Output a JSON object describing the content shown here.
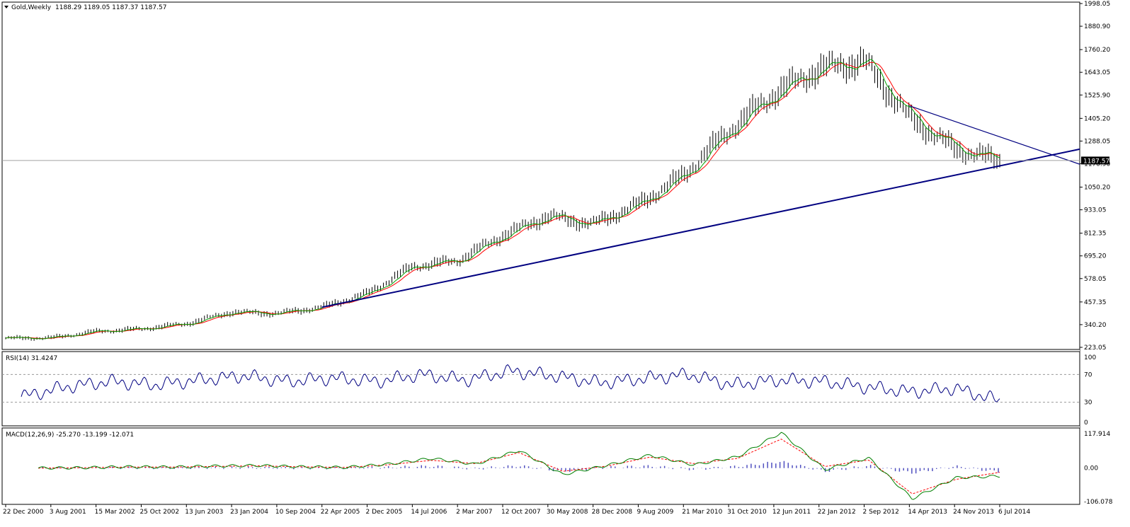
{
  "header": {
    "title": "Gold,Weekly",
    "ohlc": "1188.29 1189.05 1187.37 1187.57"
  },
  "main_panel": {
    "price_ticks": [
      "1998.05",
      "1880.90",
      "1760.20",
      "1643.05",
      "1525.90",
      "1405.20",
      "1288.05",
      "1170.90",
      "1050.20",
      "933.05",
      "812.35",
      "695.20",
      "578.05",
      "457.35",
      "340.20",
      "223.05"
    ],
    "current_price_label": "1187.57"
  },
  "rsi_panel": {
    "title": "RSI(14) 31.4247",
    "ticks": [
      "100",
      "70",
      "30",
      "0"
    ]
  },
  "macd_panel": {
    "title": "MACD(12,26,9) -25.270 -13.199 -12.071",
    "ticks": [
      "117.914",
      "0.00",
      "-106.078"
    ]
  },
  "time_axis": {
    "labels": [
      "22 Dec 2000",
      "3 Aug 2001",
      "15 Mar 2002",
      "25 Oct 2002",
      "13 Jun 2003",
      "23 Jan 2004",
      "10 Sep 2004",
      "22 Apr 2005",
      "2 Dec 2005",
      "14 Jul 2006",
      "2 Mar 2007",
      "12 Oct 2007",
      "30 May 2008",
      "28 Dec 2008",
      "9 Aug 2009",
      "21 Mar 2010",
      "31 Oct 2010",
      "12 Jun 2011",
      "22 Jan 2012",
      "2 Sep 2012",
      "14 Apr 2013",
      "24 Nov 2013",
      "6 Jul 2014"
    ]
  },
  "colors": {
    "price_bar": "#000000",
    "ma_fast": "#00a000",
    "ma_slow": "#ff0000",
    "trendline": "#000080",
    "rsi_line": "#000080",
    "macd_line": "#008000",
    "macd_signal": "#ff0000",
    "macd_histogram": "#5050c0"
  },
  "chart_data": {
    "type": "line",
    "price_anchors": {
      "labels": [
        "22 Dec 2000",
        "3 Aug 2001",
        "15 Mar 2002",
        "25 Oct 2002",
        "13 Jun 2003",
        "23 Jan 2004",
        "10 Sep 2004",
        "22 Apr 2005",
        "2 Dec 2005",
        "14 Jul 2006",
        "2 Mar 2007",
        "12 Oct 2007",
        "30 May 2008",
        "28 Dec 2008",
        "9 Aug 2009",
        "21 Mar 2010",
        "31 Oct 2010",
        "12 Jun 2011",
        "22 Jan 2012",
        "2 Sep 2012",
        "14 Apr 2013",
        "24 Nov 2013",
        "6 Jul 2014"
      ],
      "values": [
        270,
        272,
        305,
        318,
        345,
        405,
        398,
        430,
        500,
        640,
        670,
        800,
        900,
        860,
        960,
        1110,
        1340,
        1530,
        1660,
        1700,
        1410,
        1250,
        1330
      ],
      "last_value": 1187.57
    },
    "price_ylim": [
      223.05,
      1998.05
    ],
    "rsi": {
      "values": [
        38,
        52,
        60,
        55,
        62,
        68,
        60,
        65,
        60,
        70,
        62,
        75,
        68,
        58,
        64,
        70,
        55,
        62,
        60,
        52,
        45,
        50,
        32
      ],
      "levels": [
        30,
        70
      ],
      "ylim": [
        0,
        100
      ]
    },
    "macd": {
      "macd": [
        0,
        1,
        4,
        3,
        6,
        8,
        4,
        2,
        12,
        30,
        12,
        55,
        -20,
        8,
        40,
        10,
        35,
        110,
        -5,
        32,
        -95,
        -30,
        -25
      ],
      "signal": [
        0,
        1,
        3,
        3,
        5,
        7,
        4,
        2,
        10,
        24,
        14,
        48,
        -10,
        6,
        34,
        14,
        30,
        90,
        5,
        25,
        -80,
        -35,
        -13
      ],
      "ylim": [
        -106.078,
        117.914
      ]
    },
    "trendlines": [
      {
        "name": "support",
        "from": {
          "date": "22 Apr 2005",
          "value": 430
        },
        "to": {
          "date": "6 Jul 2014",
          "value": 1160
        }
      },
      {
        "name": "resistance",
        "from": {
          "date": "14 Apr 2013",
          "value": 1470
        },
        "to": {
          "date": "6 Jul 2014",
          "value": 1310
        }
      }
    ],
    "horizontal_level": 1187.57
  }
}
